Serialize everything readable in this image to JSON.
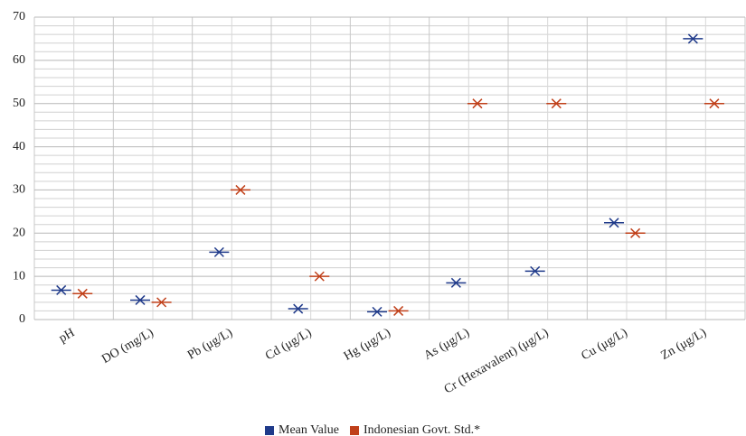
{
  "chart_data": {
    "type": "scatter",
    "categories": [
      "pH",
      "DO (mg/L)",
      "Pb (μg/L)",
      "Cd (μg/L)",
      "Hg (μg/L)",
      "As (μg/L)",
      "Cr (Hexavalent) (μg/L)",
      "Cu (μg/L)",
      "Zn (μg/L)"
    ],
    "series": [
      {
        "name": "Mean Value",
        "color": "#1f3a8a",
        "values": [
          6.8,
          4.5,
          15.6,
          2.5,
          1.8,
          8.5,
          11.2,
          22.4,
          65
        ]
      },
      {
        "name": "Indonesian Govt. Std.*",
        "color": "#c0401a",
        "values": [
          6,
          4,
          30,
          10,
          2,
          50,
          50,
          20,
          50
        ]
      }
    ],
    "ylim": [
      0,
      70
    ],
    "yticks": [
      0,
      10,
      20,
      30,
      40,
      50,
      60,
      70
    ],
    "grid": true,
    "legend": "bottom"
  }
}
